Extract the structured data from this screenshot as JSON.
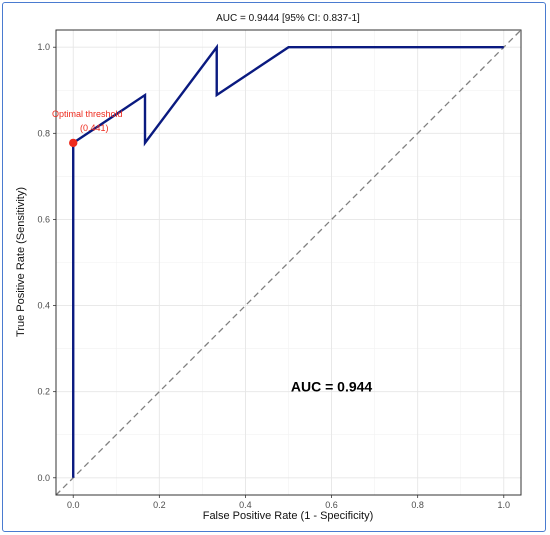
{
  "chart_data": {
    "type": "line",
    "title": "AUC = 0.9444 [95% CI: 0.837-1]",
    "xlabel": "False Positive Rate (1 - Specificity)",
    "ylabel": "True Positive Rate (Sensitivity)",
    "xlim": [
      -0.04,
      1.04
    ],
    "ylim": [
      -0.04,
      1.04
    ],
    "x_ticks": [
      "0.0",
      "0.2",
      "0.4",
      "0.6",
      "0.8",
      "1.0"
    ],
    "y_ticks": [
      "0.0",
      "0.2",
      "0.4",
      "0.6",
      "0.8",
      "1.0"
    ],
    "grid": true,
    "series": [
      {
        "x": [
          0,
          0,
          0.1667,
          0.1667,
          0.3333,
          0.3333,
          0.5,
          1.0
        ],
        "y": [
          0,
          0.7778,
          0.8889,
          0.7778,
          1.0,
          0.8889,
          1.0,
          1.0
        ],
        "color": "#0a1a80"
      }
    ],
    "reference_line": {
      "x": [
        0,
        1
      ],
      "y": [
        0,
        1
      ],
      "style": "dashed",
      "color": "#808080"
    },
    "optimal_point": {
      "x": 0,
      "y": 0.7778,
      "color": "#ee2a1d"
    },
    "annotations": {
      "optimal_label": "Optimal threshold",
      "optimal_value": "(0.441)",
      "auc_text": "AUC = 0.944"
    }
  },
  "colors": {
    "frame": "#4a7bd0",
    "roc": "#0a1a80",
    "optimal": "#ee2a1d",
    "grid": "#e6e6e6",
    "axis_box": "#333333"
  }
}
